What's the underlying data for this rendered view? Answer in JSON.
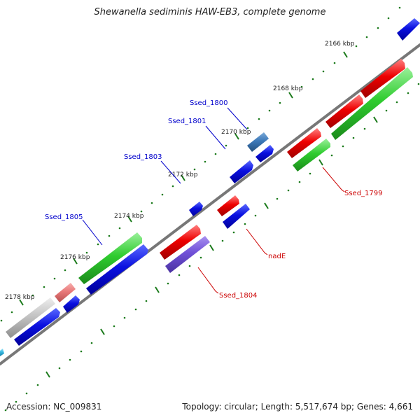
{
  "title": "Shewanella sediminis HAW-EB3, complete genome",
  "footer": {
    "accession": "Accession: NC_009831",
    "summary": "Topology: circular; Length: 5,517,674 bp; Genes: 4,661"
  },
  "ruler": {
    "unit": "kbp",
    "ticks": [
      {
        "label": "2166 kbp",
        "kbp": 2166
      },
      {
        "label": "2168 kbp",
        "kbp": 2168
      },
      {
        "label": "2170 kbp",
        "kbp": 2170
      },
      {
        "label": "2172 kbp",
        "kbp": 2172
      },
      {
        "label": "2174 kbp",
        "kbp": 2174
      },
      {
        "label": "2176 kbp",
        "kbp": 2176
      },
      {
        "label": "2178 kbp",
        "kbp": 2178
      }
    ]
  },
  "gene_labels": [
    {
      "name": "Ssed_1800",
      "color": "#0000cc",
      "strand": "forward"
    },
    {
      "name": "Ssed_1801",
      "color": "#0000cc",
      "strand": "forward"
    },
    {
      "name": "Ssed_1803",
      "color": "#0000cc",
      "strand": "forward"
    },
    {
      "name": "Ssed_1805",
      "color": "#0000cc",
      "strand": "forward"
    },
    {
      "name": "Ssed_1799",
      "color": "#cc0000",
      "strand": "reverse"
    },
    {
      "name": "nadE",
      "color": "#cc0000",
      "strand": "reverse"
    },
    {
      "name": "Ssed_1804",
      "color": "#cc0000",
      "strand": "reverse"
    }
  ],
  "colors": {
    "backbone": "#777777",
    "tick": "#1a7a1a",
    "cds_blue": "#0a10e0",
    "cds_red": "#ee0000",
    "gene_green": "#2fcc2f",
    "steelblue": "#3c78b8",
    "purple": "#7050d8",
    "pink": "#e87878",
    "grey": "#b8b8b8",
    "cyan": "#38b8e0"
  }
}
